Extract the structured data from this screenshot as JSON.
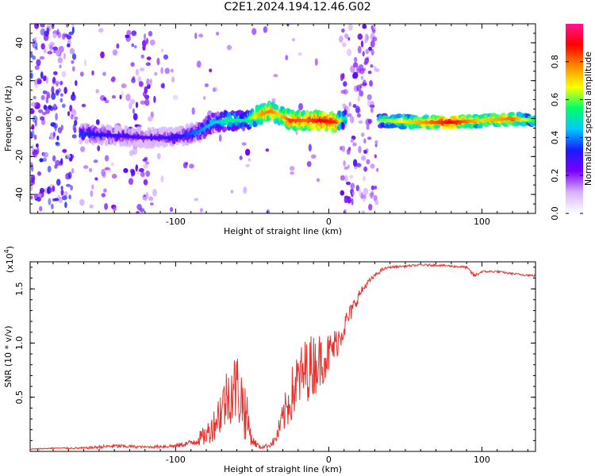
{
  "title": "C2E1.2024.194.12.46.G02",
  "chart_data": [
    {
      "type": "heatmap",
      "xlabel": "Height of straight line (km)",
      "ylabel": "Frequency (Hz)",
      "xlim": [
        -195,
        135
      ],
      "ylim": [
        -50,
        50
      ],
      "xticks": [
        -100,
        0,
        100
      ],
      "yticks": [
        -40,
        -20,
        0,
        20,
        40
      ],
      "colorbar": {
        "label": "Normalized spectral amplitude",
        "range": [
          0,
          1
        ],
        "ticks": [
          "0.0",
          "0.2",
          "0.4",
          "0.6",
          "0.8"
        ],
        "colors": [
          "#ffffff",
          "#d9b3ff",
          "#7b00ff",
          "#1a1aff",
          "#00c8ff",
          "#00ff66",
          "#ffff00",
          "#ff8800",
          "#ff0000",
          "#ff1493"
        ]
      },
      "ridge": {
        "x": [
          -160,
          -140,
          -120,
          -100,
          -85,
          -75,
          -65,
          -55,
          -45,
          -38,
          -32,
          -25,
          -15,
          -5,
          5,
          10,
          35,
          60,
          80,
          100,
          120,
          135
        ],
        "freq_hz": [
          -8,
          -9,
          -10,
          -10,
          -7,
          -2,
          -1,
          -1,
          2,
          4,
          2,
          -1,
          -1,
          -1,
          -2,
          0,
          -1,
          -2,
          -2,
          -1,
          0,
          -1
        ],
        "amplitude": [
          0.35,
          0.3,
          0.25,
          0.3,
          0.4,
          0.45,
          0.55,
          0.5,
          0.75,
          0.8,
          0.7,
          0.85,
          0.8,
          0.9,
          0.85,
          0.5,
          0.6,
          0.75,
          0.9,
          0.7,
          0.8,
          0.55
        ]
      }
    },
    {
      "type": "line",
      "xlabel": "Height of straight line (km)",
      "ylabel": "SNR (10 * v/v)",
      "y_multiplier": "(x10",
      "y_multiplier_exp": "4",
      "xlim": [
        -195,
        135
      ],
      "ylim": [
        0,
        1.75
      ],
      "xticks": [
        -100,
        0,
        100
      ],
      "yticks": [
        0.5,
        1.0,
        1.5
      ],
      "series": [
        {
          "color": "#e8322e",
          "x": [
            -195,
            -180,
            -160,
            -140,
            -120,
            -100,
            -90,
            -80,
            -75,
            -70,
            -65,
            -60,
            -55,
            -50,
            -45,
            -40,
            -35,
            -30,
            -25,
            -20,
            -15,
            -10,
            -5,
            0,
            5,
            10,
            15,
            20,
            25,
            30,
            35,
            40,
            50,
            60,
            70,
            80,
            90,
            95,
            100,
            110,
            120,
            135
          ],
          "y": [
            0.02,
            0.03,
            0.03,
            0.05,
            0.04,
            0.05,
            0.08,
            0.15,
            0.25,
            0.4,
            0.55,
            0.6,
            0.4,
            0.1,
            0.04,
            0.05,
            0.1,
            0.3,
            0.5,
            0.65,
            0.75,
            0.8,
            0.85,
            0.9,
            1.0,
            1.15,
            1.3,
            1.45,
            1.55,
            1.62,
            1.68,
            1.7,
            1.71,
            1.72,
            1.72,
            1.71,
            1.7,
            1.62,
            1.66,
            1.66,
            1.64,
            1.62
          ],
          "noise": [
            0.005,
            0.005,
            0.01,
            0.02,
            0.01,
            0.02,
            0.03,
            0.1,
            0.15,
            0.25,
            0.3,
            0.35,
            0.3,
            0.05,
            0.02,
            0.02,
            0.05,
            0.15,
            0.25,
            0.3,
            0.3,
            0.3,
            0.25,
            0.2,
            0.15,
            0.12,
            0.08,
            0.05,
            0.03,
            0.02,
            0.015,
            0.01,
            0.01,
            0.01,
            0.01,
            0.01,
            0.01,
            0.02,
            0.01,
            0.01,
            0.01,
            0.01
          ]
        }
      ]
    }
  ]
}
